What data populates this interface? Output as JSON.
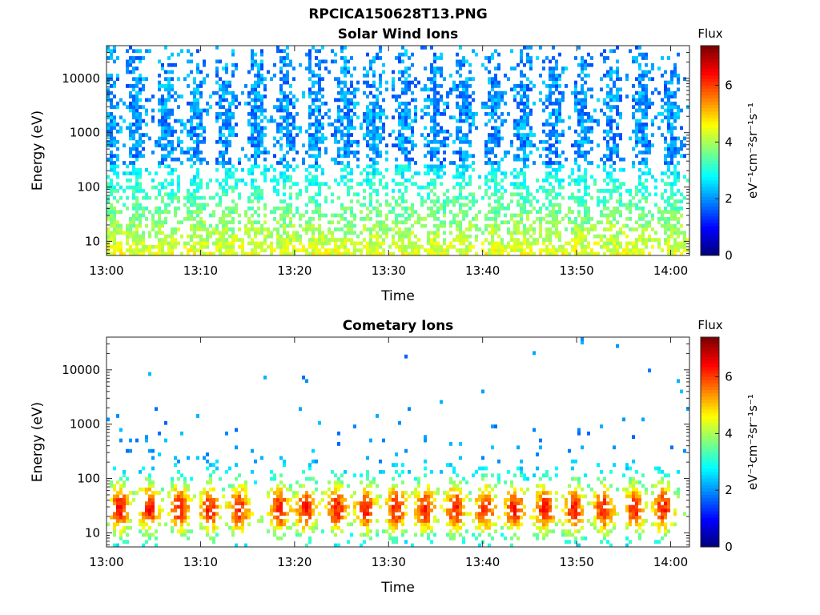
{
  "figure_title": "RPCICA150628T13.PNG",
  "colorbar_unit": "eV⁻¹cm⁻²sr⁻¹s⁻¹",
  "chart_data": [
    {
      "type": "heatmap",
      "title": "Solar Wind Ions",
      "xlabel": "Time",
      "ylabel": "Energy (eV)",
      "xticks": [
        "13:00",
        "13:10",
        "13:20",
        "13:30",
        "13:40",
        "13:50",
        "14:00"
      ],
      "xlim_minutes": [
        0,
        62
      ],
      "yscale": "log",
      "ylim": [
        5.5,
        40000
      ],
      "yticks": [
        10,
        100,
        1000,
        10000
      ],
      "ytick_labels": [
        "10",
        "100",
        "1000",
        "10000"
      ],
      "colorbar": {
        "label": "Flux",
        "range": [
          0,
          7.4
        ],
        "ticks": [
          0,
          2,
          4,
          6
        ]
      },
      "pattern": {
        "kind": "pulses",
        "pulse_centers_minutes": [
          0.3,
          3.1,
          6.4,
          9.6,
          12.7,
          15.9,
          19.0,
          22.2,
          25.4,
          28.5,
          31.7,
          34.9,
          38.0,
          41.2,
          44.3,
          47.5,
          50.6,
          53.8,
          56.9,
          60.1
        ],
        "peak_log_energy": 3.2,
        "spread_log_energy": 1.3,
        "peak_value": 1.4,
        "low_energy_value": 3.5
      }
    },
    {
      "type": "heatmap",
      "title": "Cometary Ions",
      "xlabel": "Time",
      "ylabel": "Energy (eV)",
      "xticks": [
        "13:00",
        "13:10",
        "13:20",
        "13:30",
        "13:40",
        "13:50",
        "14:00"
      ],
      "xlim_minutes": [
        0,
        62
      ],
      "yscale": "log",
      "ylim": [
        5.5,
        40000
      ],
      "yticks": [
        10,
        100,
        1000,
        10000
      ],
      "ytick_labels": [
        "10",
        "100",
        "1000",
        "10000"
      ],
      "colorbar": {
        "label": "Flux",
        "range": [
          0,
          7.4
        ],
        "ticks": [
          0,
          2,
          4,
          6
        ]
      },
      "pattern": {
        "kind": "pulses",
        "pulse_centers_minutes": [
          1.4,
          4.6,
          7.8,
          11.0,
          14.1,
          18.4,
          21.2,
          24.5,
          27.6,
          30.8,
          33.9,
          37.1,
          40.3,
          43.4,
          46.6,
          49.7,
          52.9,
          56.1,
          59.2
        ],
        "peak_log_energy": 1.45,
        "spread_log_energy": 0.55,
        "peak_value": 5.2,
        "low_energy_value": 4.8
      }
    }
  ]
}
